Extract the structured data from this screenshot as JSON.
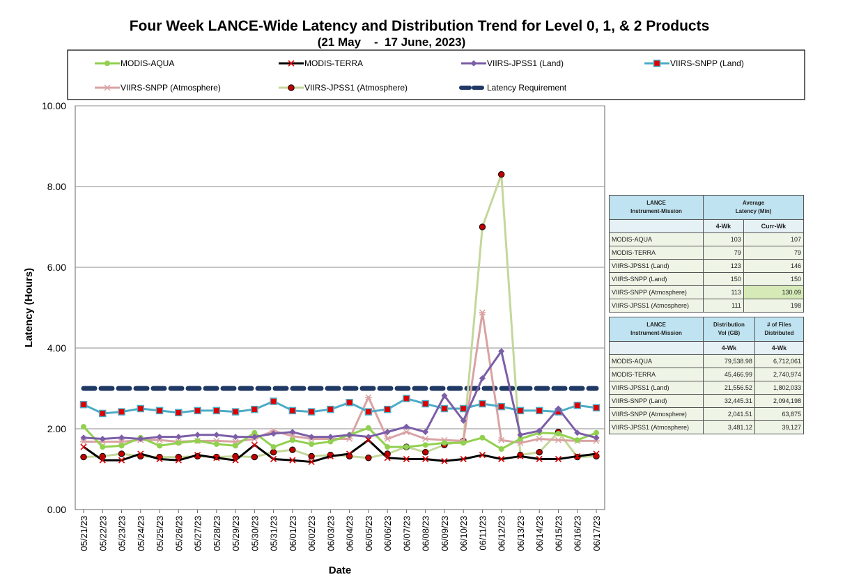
{
  "chart_data": {
    "type": "line",
    "title": "Four Week LANCE-Wide Latency and Distribution Trend for Level 0, 1, & 2 Products",
    "subtitle": "(21 May    -  17 June, 2023)",
    "xlabel": "Date",
    "ylabel": "Latency (Hours)",
    "ylim": [
      0,
      10
    ],
    "yticks": [
      "0.00",
      "2.00",
      "4.00",
      "6.00",
      "8.00",
      "10.00"
    ],
    "grid": true,
    "legend_position": "top",
    "categories": [
      "05/21/23",
      "05/22/23",
      "05/23/23",
      "05/24/23",
      "05/25/23",
      "05/26/23",
      "05/27/23",
      "05/28/23",
      "05/29/23",
      "05/30/23",
      "05/31/23",
      "06/01/23",
      "06/02/23",
      "06/03/23",
      "06/04/23",
      "06/05/23",
      "06/06/23",
      "06/07/23",
      "06/08/23",
      "06/09/23",
      "06/10/23",
      "06/11/23",
      "06/12/23",
      "06/13/23",
      "06/14/23",
      "06/15/23",
      "06/16/23",
      "06/17/23"
    ],
    "series": [
      {
        "name": "MODIS-AQUA",
        "color": "#92d050",
        "marker": "circle",
        "values": [
          2.05,
          1.55,
          1.58,
          1.78,
          1.58,
          1.65,
          1.7,
          1.62,
          1.58,
          1.9,
          1.55,
          1.72,
          1.62,
          1.68,
          1.85,
          2.02,
          1.55,
          1.55,
          1.6,
          1.65,
          1.65,
          1.78,
          1.5,
          1.75,
          1.9,
          1.88,
          1.72,
          1.9
        ]
      },
      {
        "name": "MODIS-TERRA",
        "color": "#000000",
        "marker": "x",
        "values": [
          1.55,
          1.22,
          1.22,
          1.38,
          1.25,
          1.22,
          1.35,
          1.28,
          1.22,
          1.6,
          1.25,
          1.22,
          1.18,
          1.32,
          1.38,
          1.72,
          1.28,
          1.25,
          1.25,
          1.2,
          1.25,
          1.35,
          1.25,
          1.32,
          1.25,
          1.25,
          1.32,
          1.38
        ]
      },
      {
        "name": "VIIRS-JPSS1 (Land)",
        "color": "#7b5ea7",
        "marker": "diamond",
        "values": [
          1.78,
          1.75,
          1.78,
          1.75,
          1.8,
          1.8,
          1.85,
          1.85,
          1.8,
          1.8,
          1.88,
          1.92,
          1.8,
          1.8,
          1.85,
          1.8,
          1.92,
          2.05,
          1.92,
          2.82,
          2.2,
          3.25,
          3.92,
          1.85,
          1.95,
          2.5,
          1.9,
          1.78
        ]
      },
      {
        "name": "VIIRS-SNPP (Land)",
        "color": "#4bacc6",
        "marker": "square",
        "values": [
          2.6,
          2.38,
          2.42,
          2.5,
          2.45,
          2.4,
          2.45,
          2.45,
          2.42,
          2.48,
          2.68,
          2.45,
          2.42,
          2.48,
          2.65,
          2.42,
          2.48,
          2.75,
          2.62,
          2.5,
          2.5,
          2.62,
          2.55,
          2.45,
          2.45,
          2.42,
          2.58,
          2.52
        ]
      },
      {
        "name": "VIIRS-SNPP (Atmosphere)",
        "color": "#d9a3a3",
        "marker": "star",
        "values": [
          1.68,
          1.68,
          1.68,
          1.72,
          1.72,
          1.68,
          1.7,
          1.7,
          1.68,
          1.75,
          1.95,
          1.82,
          1.75,
          1.75,
          1.75,
          2.78,
          1.75,
          1.92,
          1.75,
          1.72,
          1.7,
          4.88,
          1.72,
          1.65,
          1.75,
          1.72,
          1.7,
          1.7
        ]
      },
      {
        "name": "VIIRS-JPSS1 (Atmosphere)",
        "color": "#c4d79b",
        "marker": "dotcircle",
        "values": [
          1.3,
          1.32,
          1.38,
          1.32,
          1.3,
          1.3,
          1.32,
          1.3,
          1.32,
          1.3,
          1.42,
          1.48,
          1.32,
          1.35,
          1.32,
          1.28,
          1.38,
          1.55,
          1.42,
          1.6,
          1.7,
          7.0,
          8.3,
          1.35,
          1.42,
          1.92,
          1.3,
          1.32
        ]
      },
      {
        "name": "Latency Requirement",
        "color": "#1f3864",
        "marker": "none",
        "dashed": true,
        "values": [
          3,
          3,
          3,
          3,
          3,
          3,
          3,
          3,
          3,
          3,
          3,
          3,
          3,
          3,
          3,
          3,
          3,
          3,
          3,
          3,
          3,
          3,
          3,
          3,
          3,
          3,
          3,
          3
        ]
      }
    ]
  },
  "latency_table": {
    "header_col1": "LANCE\nInstrument-Mission",
    "header_col2": "Average\nLatency (Min)",
    "sub_4wk": "4-Wk",
    "sub_curwk": "Curr-Wk",
    "rows": [
      {
        "name": "MODIS-AQUA",
        "wk4": "103",
        "cur": "107"
      },
      {
        "name": "MODIS-TERRA",
        "wk4": "79",
        "cur": "79"
      },
      {
        "name": "VIIRS-JPSS1 (Land)",
        "wk4": "123",
        "cur": "146"
      },
      {
        "name": "VIIRS-SNPP (Land)",
        "wk4": "150",
        "cur": "150"
      },
      {
        "name": "VIIRS-SNPP (Atmosphere)",
        "wk4": "113",
        "cur": "130.09"
      },
      {
        "name": "VIIRS-JPSS1 (Atmosphere)",
        "wk4": "111",
        "cur": "198"
      }
    ]
  },
  "distribution_table": {
    "header_col1": "LANCE\nInstrument-Mission",
    "header_col2": "Distribution\nVol (GB)",
    "header_col3": "# of Files\nDistributed",
    "sub_vol": "4-Wk",
    "sub_files": "4-Wk",
    "rows": [
      {
        "name": "MODIS-AQUA",
        "vol": "79,538.98",
        "files": "6,712,061"
      },
      {
        "name": "MODIS-TERRA",
        "vol": "45,466.99",
        "files": "2,740,974"
      },
      {
        "name": "VIIRS-JPSS1 (Land)",
        "vol": "21,556.52",
        "files": "1,802,033"
      },
      {
        "name": "VIIRS-SNPP (Land)",
        "vol": "32,445.31",
        "files": "2,094,198"
      },
      {
        "name": "VIIRS-SNPP (Atmosphere)",
        "vol": "2,041.51",
        "files": "63,875"
      },
      {
        "name": "VIIRS-JPSS1 (Atmosphere)",
        "vol": "3,481.12",
        "files": "39,127"
      }
    ]
  }
}
